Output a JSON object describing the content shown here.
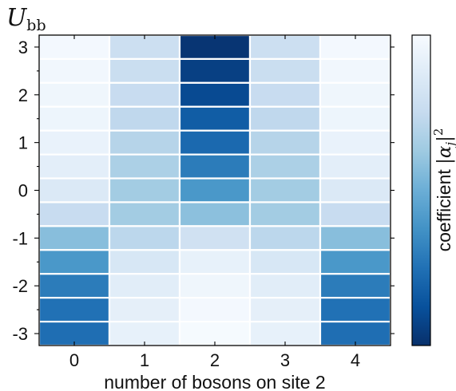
{
  "chart_data": {
    "type": "heatmap",
    "xlabel": "number of bosons on site 2",
    "ylabel": {
      "symbol": "U",
      "subscript": "bb"
    },
    "colorbar_label": {
      "prefix": "coefficient ",
      "math": "|α",
      "math_sub": "j",
      "math_close": "|",
      "math_sup": "2"
    },
    "colormap": "Blues",
    "x_categories": [
      0,
      1,
      2,
      3,
      4
    ],
    "x_tick_labels": [
      "0",
      "1",
      "2",
      "3",
      "4"
    ],
    "y_ticks": [
      3,
      2,
      1,
      0,
      -1,
      -2,
      -3
    ],
    "y_tick_labels": [
      "3",
      "2",
      "1",
      "0",
      "-1",
      "-2",
      "-3"
    ],
    "y_rows": [
      3,
      2.5,
      2,
      1.5,
      1,
      0.5,
      0,
      -0.5,
      -1,
      -1.5,
      -2,
      -2.5,
      -3
    ],
    "ylim": [
      -3.25,
      3.25
    ],
    "values": [
      [
        0.98,
        0.78,
        0.02,
        0.78,
        0.98
      ],
      [
        0.97,
        0.77,
        0.06,
        0.77,
        0.97
      ],
      [
        0.96,
        0.76,
        0.1,
        0.76,
        0.96
      ],
      [
        0.95,
        0.73,
        0.17,
        0.73,
        0.95
      ],
      [
        0.93,
        0.7,
        0.22,
        0.7,
        0.93
      ],
      [
        0.9,
        0.67,
        0.29,
        0.67,
        0.9
      ],
      [
        0.86,
        0.64,
        0.4,
        0.64,
        0.86
      ],
      [
        0.76,
        0.64,
        0.58,
        0.64,
        0.76
      ],
      [
        0.57,
        0.72,
        0.8,
        0.72,
        0.57
      ],
      [
        0.4,
        0.84,
        0.92,
        0.84,
        0.4
      ],
      [
        0.29,
        0.89,
        0.96,
        0.89,
        0.29
      ],
      [
        0.25,
        0.91,
        0.98,
        0.91,
        0.25
      ],
      [
        0.24,
        0.92,
        0.99,
        0.92,
        0.24
      ]
    ],
    "grid": false
  }
}
